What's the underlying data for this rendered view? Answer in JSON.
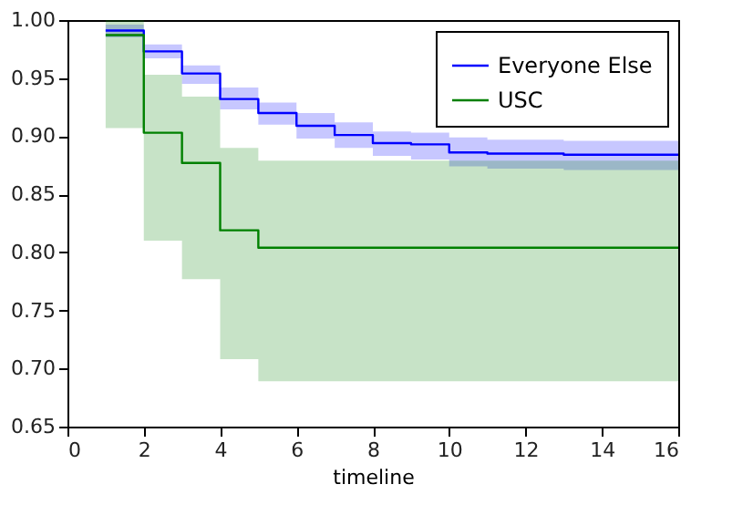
{
  "chart_data": {
    "type": "step",
    "xlabel": "timeline",
    "xlim": [
      0,
      16
    ],
    "xticks": [
      0,
      2,
      4,
      6,
      8,
      10,
      12,
      14,
      16
    ],
    "ylim": [
      0.65,
      1.0
    ],
    "yticks": [
      {
        "value": 0.65,
        "label": "0.65"
      },
      {
        "value": 0.7,
        "label": "0.70"
      },
      {
        "value": 0.75,
        "label": "0.75"
      },
      {
        "value": 0.8,
        "label": "0.80"
      },
      {
        "value": 0.85,
        "label": "0.85"
      },
      {
        "value": 0.9,
        "label": "0.90"
      },
      {
        "value": 0.95,
        "label": "0.95"
      },
      {
        "value": 1.0,
        "label": "1.00"
      }
    ],
    "x": [
      1,
      2,
      3,
      4,
      5,
      6,
      7,
      8,
      9,
      10,
      11,
      12,
      13,
      14,
      15,
      16
    ],
    "series": [
      {
        "name": "Everyone Else",
        "color": "#0000ff",
        "values": [
          0.991,
          0.973,
          0.954,
          0.932,
          0.92,
          0.909,
          0.901,
          0.894,
          0.893,
          0.886,
          0.885,
          0.885,
          0.884,
          0.884,
          0.884,
          0.884
        ],
        "lower": [
          0.985,
          0.967,
          0.945,
          0.923,
          0.91,
          0.898,
          0.89,
          0.883,
          0.88,
          0.874,
          0.872,
          0.872,
          0.871,
          0.871,
          0.871,
          0.871
        ],
        "upper": [
          0.996,
          0.979,
          0.961,
          0.942,
          0.929,
          0.92,
          0.912,
          0.904,
          0.903,
          0.899,
          0.897,
          0.897,
          0.896,
          0.896,
          0.896,
          0.896
        ]
      },
      {
        "name": "USC",
        "color": "#008000",
        "values": [
          0.987,
          0.903,
          0.877,
          0.819,
          0.804,
          0.804,
          0.804,
          0.804,
          0.804,
          0.804,
          0.804,
          0.804,
          0.804,
          0.804,
          0.804,
          0.804
        ],
        "lower": [
          0.907,
          0.81,
          0.777,
          0.708,
          0.689,
          0.689,
          0.689,
          0.689,
          0.689,
          0.689,
          0.689,
          0.689,
          0.689,
          0.689,
          0.689,
          0.689
        ],
        "upper": [
          1.0,
          0.953,
          0.934,
          0.89,
          0.879,
          0.879,
          0.879,
          0.879,
          0.879,
          0.879,
          0.879,
          0.879,
          0.879,
          0.879,
          0.879,
          0.879
        ]
      }
    ],
    "legend": "top right",
    "grid": false
  }
}
